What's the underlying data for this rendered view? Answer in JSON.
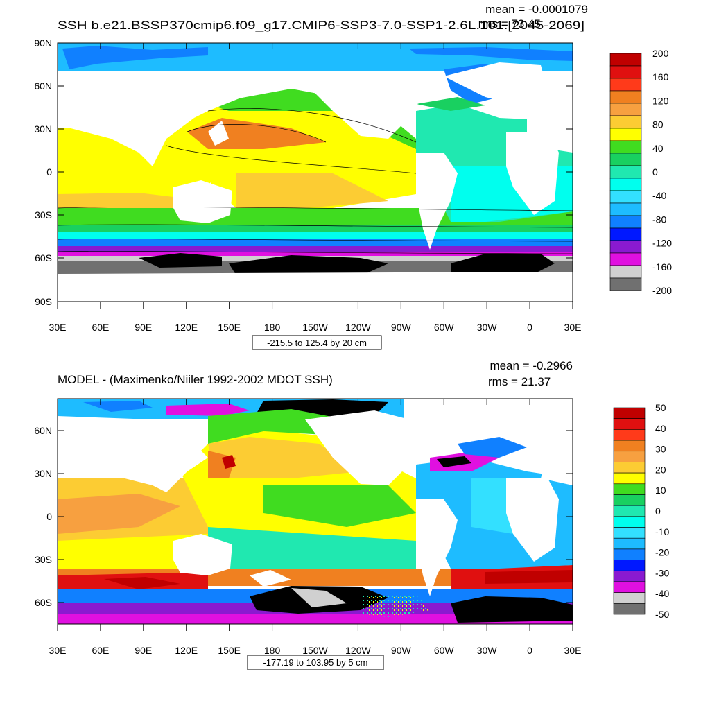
{
  "top_panel": {
    "title": "SSH b.e21.BSSP370cmip6.f09_g17.CMIP6-SSP3-7.0-SSP1-2.6L.101.[2045-2069]",
    "mean_text": "mean = -0.0001079",
    "rms_text": "rms = 73.45",
    "range_text": "-215.5 to 125.4 by 20 cm",
    "lat_labels": [
      "90N",
      "60N",
      "30N",
      "0",
      "30S",
      "60S",
      "90S"
    ],
    "lon_labels": [
      "30E",
      "60E",
      "90E",
      "120E",
      "150E",
      "180",
      "150W",
      "120W",
      "90W",
      "60W",
      "30W",
      "0",
      "30E"
    ],
    "colorbar": {
      "labels": [
        "200",
        "160",
        "120",
        "80",
        "40",
        "0",
        "-40",
        "-80",
        "-120",
        "-160",
        "-200"
      ],
      "colors": [
        "#c00000",
        "#e01010",
        "#ff3a1a",
        "#f08020",
        "#f7a040",
        "#fccc33",
        "#ffff00",
        "#40dc20",
        "#19d060",
        "#20e8b0",
        "#00ffee",
        "#33e0ff",
        "#1ebcff",
        "#1080ff",
        "#0018ff",
        "#8a1ad0",
        "#e010e0",
        "#d0d0d0",
        "#707070"
      ]
    }
  },
  "bottom_panel": {
    "title": "MODEL - (Maximenko/Niiler 1992-2002 MDOT SSH)",
    "mean_text": "mean = -0.2966",
    "rms_text": "rms = 21.37",
    "range_text": "-177.19 to 103.95 by 5 cm",
    "lat_labels": [
      "60N",
      "30N",
      "0",
      "30S",
      "60S"
    ],
    "lon_labels": [
      "30E",
      "60E",
      "90E",
      "120E",
      "150E",
      "180",
      "150W",
      "120W",
      "90W",
      "60W",
      "30W",
      "0",
      "30E"
    ],
    "colorbar": {
      "labels": [
        "50",
        "40",
        "30",
        "20",
        "10",
        "0",
        "-10",
        "-20",
        "-30",
        "-40",
        "-50"
      ],
      "colors": [
        "#c00000",
        "#e01010",
        "#ff3a1a",
        "#f08020",
        "#f7a040",
        "#fccc33",
        "#ffff00",
        "#40dc20",
        "#19d060",
        "#20e8b0",
        "#00ffee",
        "#33e0ff",
        "#1ebcff",
        "#1080ff",
        "#0018ff",
        "#8a1ad0",
        "#e010e0",
        "#d0d0d0",
        "#707070"
      ]
    }
  }
}
